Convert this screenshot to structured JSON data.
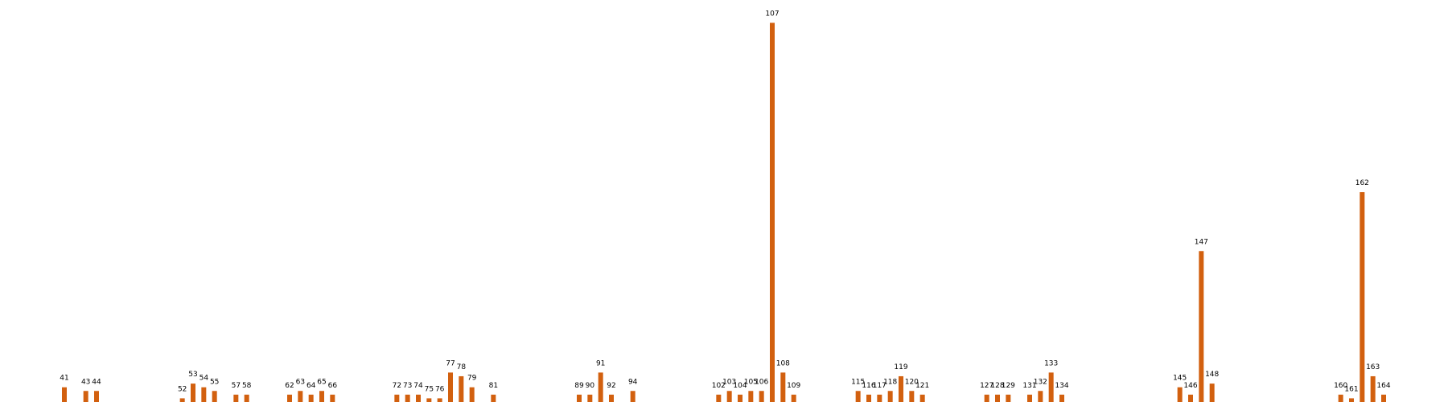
{
  "chart_data": {
    "type": "bar",
    "title": "",
    "xlabel": "",
    "ylabel": "",
    "bar_color": "#d2600f",
    "axes_visible": false,
    "grid": false,
    "legend": "none",
    "xlim": [
      35,
      170
    ],
    "ylim": [
      0,
      104
    ],
    "categories": [
      41,
      43,
      44,
      52,
      53,
      54,
      55,
      57,
      58,
      62,
      63,
      64,
      65,
      66,
      72,
      73,
      74,
      75,
      76,
      77,
      78,
      79,
      81,
      89,
      90,
      91,
      92,
      94,
      102,
      103,
      104,
      105,
      106,
      107,
      108,
      109,
      115,
      116,
      117,
      118,
      119,
      120,
      121,
      127,
      128,
      129,
      131,
      132,
      133,
      134,
      145,
      146,
      147,
      148,
      160,
      161,
      162,
      163,
      164
    ],
    "values": [
      4,
      3,
      3,
      1,
      5,
      4,
      3,
      2,
      2,
      2,
      3,
      2,
      3,
      2,
      2,
      2,
      2,
      1,
      1,
      8,
      7,
      4,
      2,
      2,
      2,
      8,
      2,
      3,
      2,
      3,
      2,
      3,
      3,
      103,
      8,
      2,
      3,
      2,
      2,
      3,
      7,
      3,
      2,
      2,
      2,
      2,
      2,
      3,
      8,
      2,
      4,
      2,
      41,
      5,
      2,
      1,
      57,
      7,
      2
    ],
    "data_labels": [
      "41",
      "43",
      "44",
      "52",
      "53",
      "54",
      "55",
      "57",
      "58",
      "62",
      "63",
      "64",
      "65",
      "66",
      "72",
      "73",
      "74",
      "75",
      "76",
      "77",
      "78",
      "79",
      "81",
      "89",
      "90",
      "91",
      "92",
      "94",
      "102",
      "103",
      "104",
      "105",
      "106",
      "107",
      "108",
      "109",
      "115",
      "116",
      "117",
      "118",
      "119",
      "120",
      "121",
      "127",
      "128",
      "129",
      "131",
      "132",
      "133",
      "134",
      "145",
      "146",
      "147",
      "148",
      "160",
      "161",
      "162",
      "163",
      "164"
    ]
  }
}
